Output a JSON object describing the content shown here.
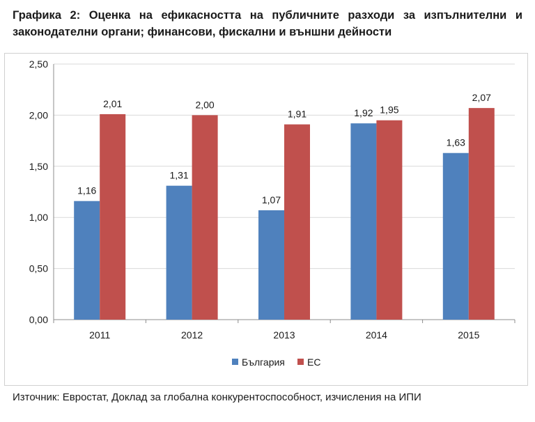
{
  "title": "Графика 2: Оценка на ефикасността на публичните разходи за изпълнителни и законодателни органи; финансови, фискални и външни дейности",
  "source": "Източник: Евростат, Доклад за глобална конкурентоспособност, изчисления на ИПИ",
  "colors": {
    "series1": "#4f81bd",
    "series2": "#c0504d",
    "grid": "#d9d9d9",
    "axis": "#8c8c8c"
  },
  "chart_data": {
    "type": "bar",
    "categories": [
      "2011",
      "2012",
      "2013",
      "2014",
      "2015"
    ],
    "series": [
      {
        "name": "България",
        "values": [
          1.16,
          1.31,
          1.07,
          1.92,
          1.63
        ],
        "labels": [
          "1,16",
          "1,31",
          "1,07",
          "1,92",
          "1,63"
        ]
      },
      {
        "name": "ЕС",
        "values": [
          2.01,
          2.0,
          1.91,
          1.95,
          2.07
        ],
        "labels": [
          "2,01",
          "2,00",
          "1,91",
          "1,95",
          "2,07"
        ]
      }
    ],
    "ylim": [
      0,
      2.5
    ],
    "yticks": [
      0,
      0.5,
      1.0,
      1.5,
      2.0,
      2.5
    ],
    "ytick_labels": [
      "0,00",
      "0,50",
      "1,00",
      "1,50",
      "2,00",
      "2,50"
    ],
    "xlabel": "",
    "ylabel": "",
    "grid": true,
    "legend": "bottom-center"
  }
}
